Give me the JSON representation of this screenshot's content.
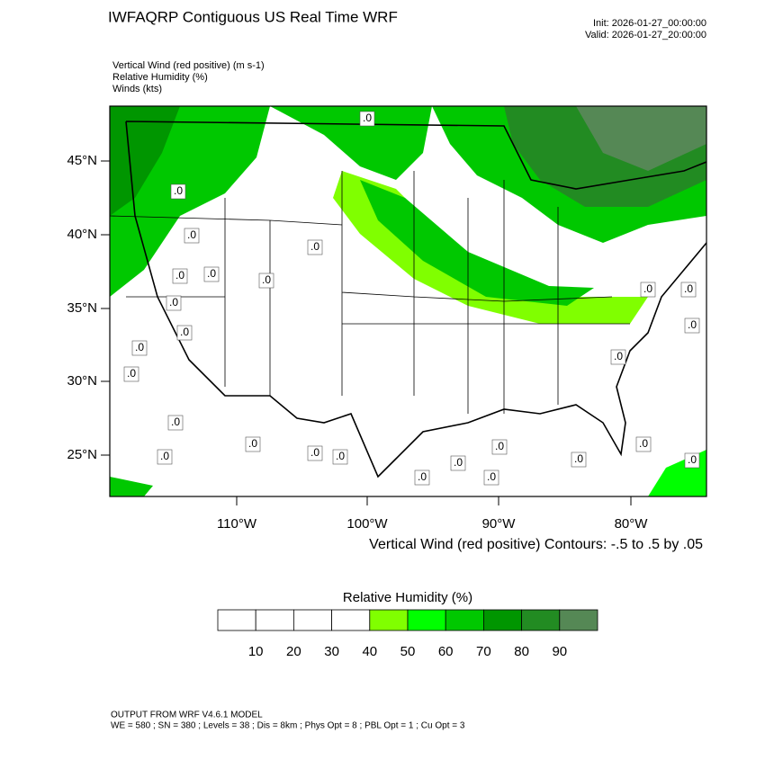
{
  "header": {
    "title": "IWFAQRP Contiguous US Real Time WRF",
    "init": "Init: 2026-01-27_00:00:00",
    "valid": "Valid: 2026-01-27_20:00:00"
  },
  "fields": [
    "Vertical Wind (red positive)   (m s-1)",
    "Relative Humidity   (%)",
    "Winds   (kts)"
  ],
  "map": {
    "lat_labels": [
      "45°N",
      "40°N",
      "35°N",
      "30°N",
      "25°N"
    ],
    "lon_labels": [
      "110°W",
      "100°W",
      "90°W",
      "80°W"
    ],
    "contour_note": "Vertical Wind (red positive) Contours: -.5 to .5 by .05",
    "contour_labels": [
      ".0",
      ".0",
      ".0",
      ".0",
      ".0",
      ".0",
      ".0",
      ".0",
      ".0",
      ".0",
      ".0",
      ".0",
      ".0",
      ".0",
      ".0",
      ".0",
      ".0",
      ".0",
      ".0",
      ".0",
      ".0",
      ".0",
      ".0",
      ".0",
      ".0",
      ".0",
      ".0"
    ]
  },
  "colorbar": {
    "title": "Relative Humidity  (%)",
    "labels": [
      10,
      20,
      30,
      40,
      50,
      60,
      70,
      80,
      90
    ],
    "colors": [
      "#ffffff",
      "#ffffff",
      "#ffffff",
      "#ffffff",
      "#80ff00",
      "#00ff00",
      "#00c800",
      "#009600",
      "#228b22",
      "#558855"
    ]
  },
  "footer": {
    "model": "OUTPUT FROM WRF V4.6.1 MODEL",
    "settings": "WE = 580 ; SN = 380 ; Levels = 38 ; Dis = 8km ; Phys Opt = 8 ; PBL Opt = 1 ; Cu Opt = 3"
  }
}
